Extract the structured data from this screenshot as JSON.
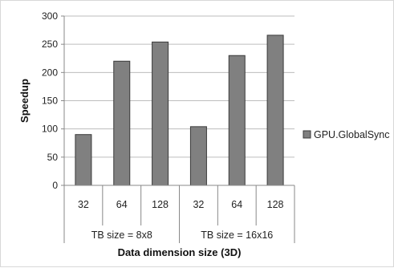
{
  "chart_data": {
    "type": "bar",
    "title": "",
    "xlabel": "Data dimension size (3D)",
    "ylabel": "Speedup",
    "ylim": [
      0,
      300
    ],
    "yticks": [
      0,
      50,
      100,
      150,
      200,
      250,
      300
    ],
    "grid": true,
    "legend_position": "right",
    "categories": [
      "32",
      "64",
      "128",
      "32",
      "64",
      "128"
    ],
    "groups": [
      {
        "label": "TB size = 8x8",
        "categories": [
          "32",
          "64",
          "128"
        ]
      },
      {
        "label": "TB size = 16x16",
        "categories": [
          "32",
          "64",
          "128"
        ]
      }
    ],
    "series": [
      {
        "name": "GPU.GlobalSync",
        "color": "#808080",
        "values": [
          90,
          220,
          254,
          104,
          230,
          266
        ]
      }
    ]
  }
}
